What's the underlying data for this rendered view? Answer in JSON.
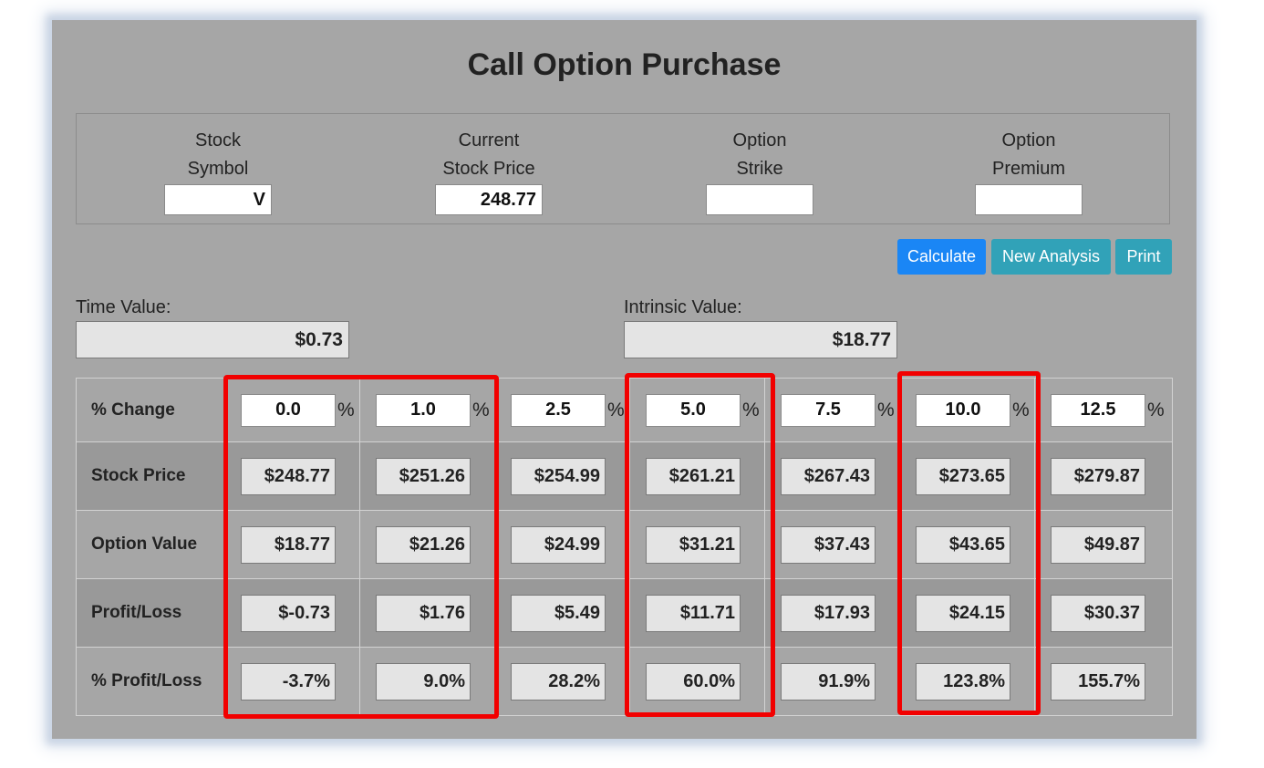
{
  "title": "Call Option Purchase",
  "inputs": [
    {
      "label1": "Stock",
      "label2": "Symbol",
      "value": "V"
    },
    {
      "label1": "Current",
      "label2": "Stock Price",
      "value": "248.77"
    },
    {
      "label1": "Option",
      "label2": "Strike",
      "value": ""
    },
    {
      "label1": "Option",
      "label2": "Premium",
      "value": ""
    }
  ],
  "buttons": {
    "calculate": "Calculate",
    "new_analysis": "New Analysis",
    "print": "Print"
  },
  "time_value": {
    "label": "Time Value:",
    "value": "$0.73"
  },
  "intrinsic_value": {
    "label": "Intrinsic Value:",
    "value": "$18.77"
  },
  "table": {
    "pct_label": "% Change",
    "pct_sign": "%",
    "pct_values": [
      "0.0",
      "1.0",
      "2.5",
      "5.0",
      "7.5",
      "10.0",
      "12.5"
    ],
    "rows": [
      {
        "label": "Stock Price",
        "values": [
          "$248.77",
          "$251.26",
          "$254.99",
          "$261.21",
          "$267.43",
          "$273.65",
          "$279.87"
        ]
      },
      {
        "label": "Option Value",
        "values": [
          "$18.77",
          "$21.26",
          "$24.99",
          "$31.21",
          "$37.43",
          "$43.65",
          "$49.87"
        ]
      },
      {
        "label": "Profit/Loss",
        "values": [
          "$-0.73",
          "$1.76",
          "$5.49",
          "$11.71",
          "$17.93",
          "$24.15",
          "$30.37"
        ]
      },
      {
        "label": "% Profit/Loss",
        "values": [
          "-3.7%",
          "9.0%",
          "28.2%",
          "60.0%",
          "91.9%",
          "123.8%",
          "155.7%"
        ]
      }
    ]
  },
  "colors": {
    "highlight": "#f20000",
    "primary_button": "#1a86f5",
    "info_button": "#31a2b8",
    "panel": "#a6a6a6"
  }
}
